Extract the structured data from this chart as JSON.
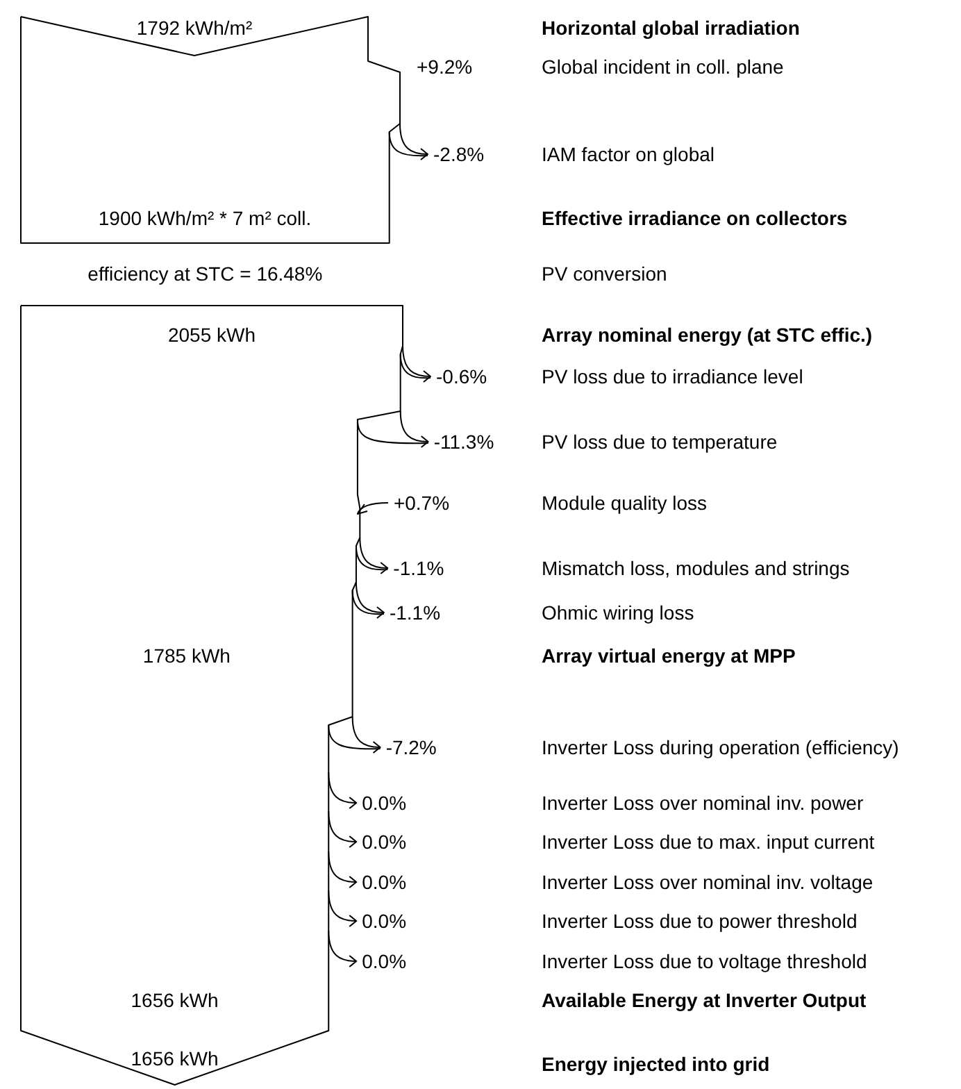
{
  "chart_data": {
    "type": "other",
    "categories": [
      "Horizontal global irradiation",
      "Global incident in coll. plane",
      "IAM factor on global",
      "Effective irradiance on collectors",
      "PV conversion",
      "Array nominal energy (at STC effic.)",
      "PV loss due to irradiance level",
      "PV loss due to temperature",
      "Module quality loss",
      "Mismatch loss, modules and strings",
      "Ohmic wiring loss",
      "Array virtual energy at MPP",
      "Inverter Loss during operation (efficiency)",
      "Inverter Loss over nominal inv. power",
      "Inverter Loss due to max. input current",
      "Inverter Loss over nominal inv. voltage",
      "Inverter Loss due to power threshold",
      "Inverter Loss due to voltage threshold",
      "Available Energy at Inverter Output",
      "Energy injected into grid"
    ],
    "values": [
      1792,
      9.2,
      -2.8,
      1900,
      16.48,
      2055,
      -0.6,
      -11.3,
      0.7,
      -1.1,
      -1.1,
      1785,
      -7.2,
      0.0,
      0.0,
      0.0,
      0.0,
      0.0,
      1656,
      1656
    ],
    "value_labels": [
      "1792 kWh/m²",
      "+9.2%",
      "-2.8%",
      "1900 kWh/m² * 7 m² coll.",
      "efficiency at STC = 16.48%",
      "2055 kWh",
      "-0.6%",
      "-11.3%",
      "+0.7%",
      "-1.1%",
      "-1.1%",
      "1785 kWh",
      "-7.2%",
      "0.0%",
      "0.0%",
      "0.0%",
      "0.0%",
      "0.0%",
      "1656 kWh",
      "1656 kWh"
    ]
  }
}
